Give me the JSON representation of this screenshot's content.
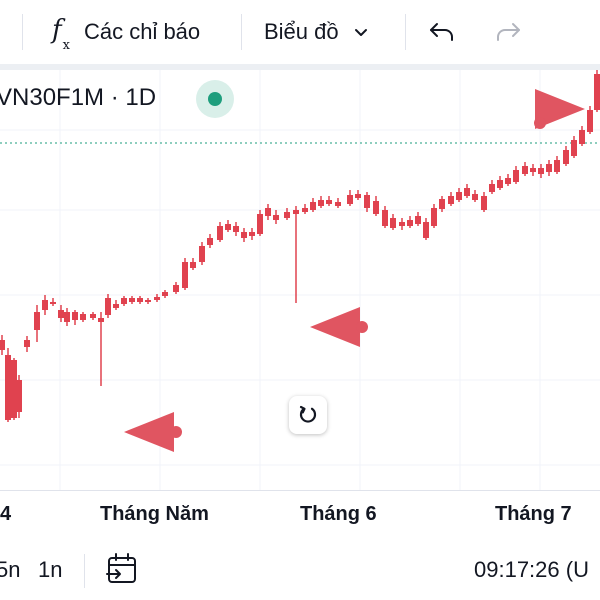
{
  "toolbar": {
    "indicators_label": "Các chỉ báo",
    "chart_type_label": "Biểu đồ",
    "indicators_icon": "fx-icon",
    "chart_type_icon": "chevron-down-icon",
    "undo_icon": "undo-icon",
    "redo_icon": "redo-icon"
  },
  "symbol": {
    "label": "VN30F1M · 1D",
    "status_color": "#1e9e7d"
  },
  "colors": {
    "up": "#1e9e7d",
    "down": "#e0424f",
    "arrow": "#e05561",
    "price_line": "#1e9e7d"
  },
  "chart_data": {
    "type": "candlestick",
    "x_tick_labels": [
      "4",
      "Tháng Năm",
      "Tháng 6",
      "Tháng 7"
    ],
    "annotations": [
      "arrow-left",
      "arrow-left",
      "arrow-left"
    ]
  },
  "chart_controls": {
    "reset_icon": "reset-rotate-icon"
  },
  "bottombar": {
    "interval_1": "5n",
    "interval_2": "1n",
    "date_range_icon": "calendar-goto-icon",
    "time": "09:17:26 (U"
  }
}
